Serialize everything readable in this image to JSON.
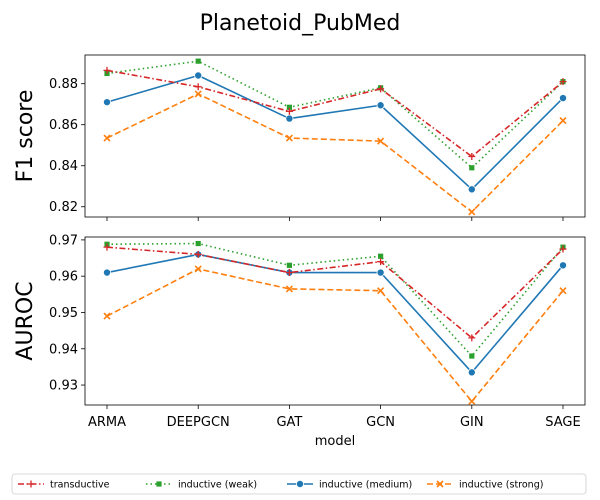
{
  "chart_data": {
    "type": "line",
    "title": "Planetoid_PubMed",
    "xlabel": "model",
    "categories": [
      "ARMA",
      "DEEPGCN",
      "GAT",
      "GCN",
      "GIN",
      "SAGE"
    ],
    "legend": {
      "position": "bottom",
      "entries": [
        "transductive",
        "inductive (weak)",
        "inductive (medium)",
        "inductive (strong)"
      ]
    },
    "series_styles": [
      {
        "name": "transductive",
        "color": "#d62728",
        "dash": "dashdot",
        "marker": "plus"
      },
      {
        "name": "inductive (weak)",
        "color": "#2ca02c",
        "dash": "dotted",
        "marker": "square"
      },
      {
        "name": "inductive (medium)",
        "color": "#1f77b4",
        "dash": "solid",
        "marker": "circle"
      },
      {
        "name": "inductive (strong)",
        "color": "#ff7f0e",
        "dash": "dashed",
        "marker": "x"
      }
    ],
    "panels": [
      {
        "ylabel": "F1 score",
        "ylim": [
          0.815,
          0.894
        ],
        "yticks": [
          "0.82",
          "0.84",
          "0.86",
          "0.88"
        ],
        "series": [
          {
            "name": "transductive",
            "values": [
              0.8865,
              0.8785,
              0.8665,
              0.8775,
              0.8445,
              0.881
            ]
          },
          {
            "name": "inductive (weak)",
            "values": [
              0.885,
              0.891,
              0.8685,
              0.878,
              0.839,
              0.881
            ]
          },
          {
            "name": "inductive (medium)",
            "values": [
              0.871,
              0.884,
              0.863,
              0.8695,
              0.8285,
              0.873
            ]
          },
          {
            "name": "inductive (strong)",
            "values": [
              0.8535,
              0.875,
              0.8535,
              0.852,
              0.8175,
              0.862
            ]
          }
        ]
      },
      {
        "ylabel": "AUROC",
        "ylim": [
          0.9245,
          0.9708
        ],
        "yticks": [
          "0.93",
          "0.94",
          "0.95",
          "0.96",
          "0.97"
        ],
        "series": [
          {
            "name": "transductive",
            "values": [
              0.968,
              0.966,
              0.961,
              0.964,
              0.943,
              0.9675
            ]
          },
          {
            "name": "inductive (weak)",
            "values": [
              0.9688,
              0.969,
              0.963,
              0.9655,
              0.938,
              0.968
            ]
          },
          {
            "name": "inductive (medium)",
            "values": [
              0.961,
              0.966,
              0.961,
              0.961,
              0.9335,
              0.963
            ]
          },
          {
            "name": "inductive (strong)",
            "values": [
              0.949,
              0.962,
              0.9565,
              0.956,
              0.9255,
              0.956
            ]
          }
        ]
      }
    ]
  }
}
